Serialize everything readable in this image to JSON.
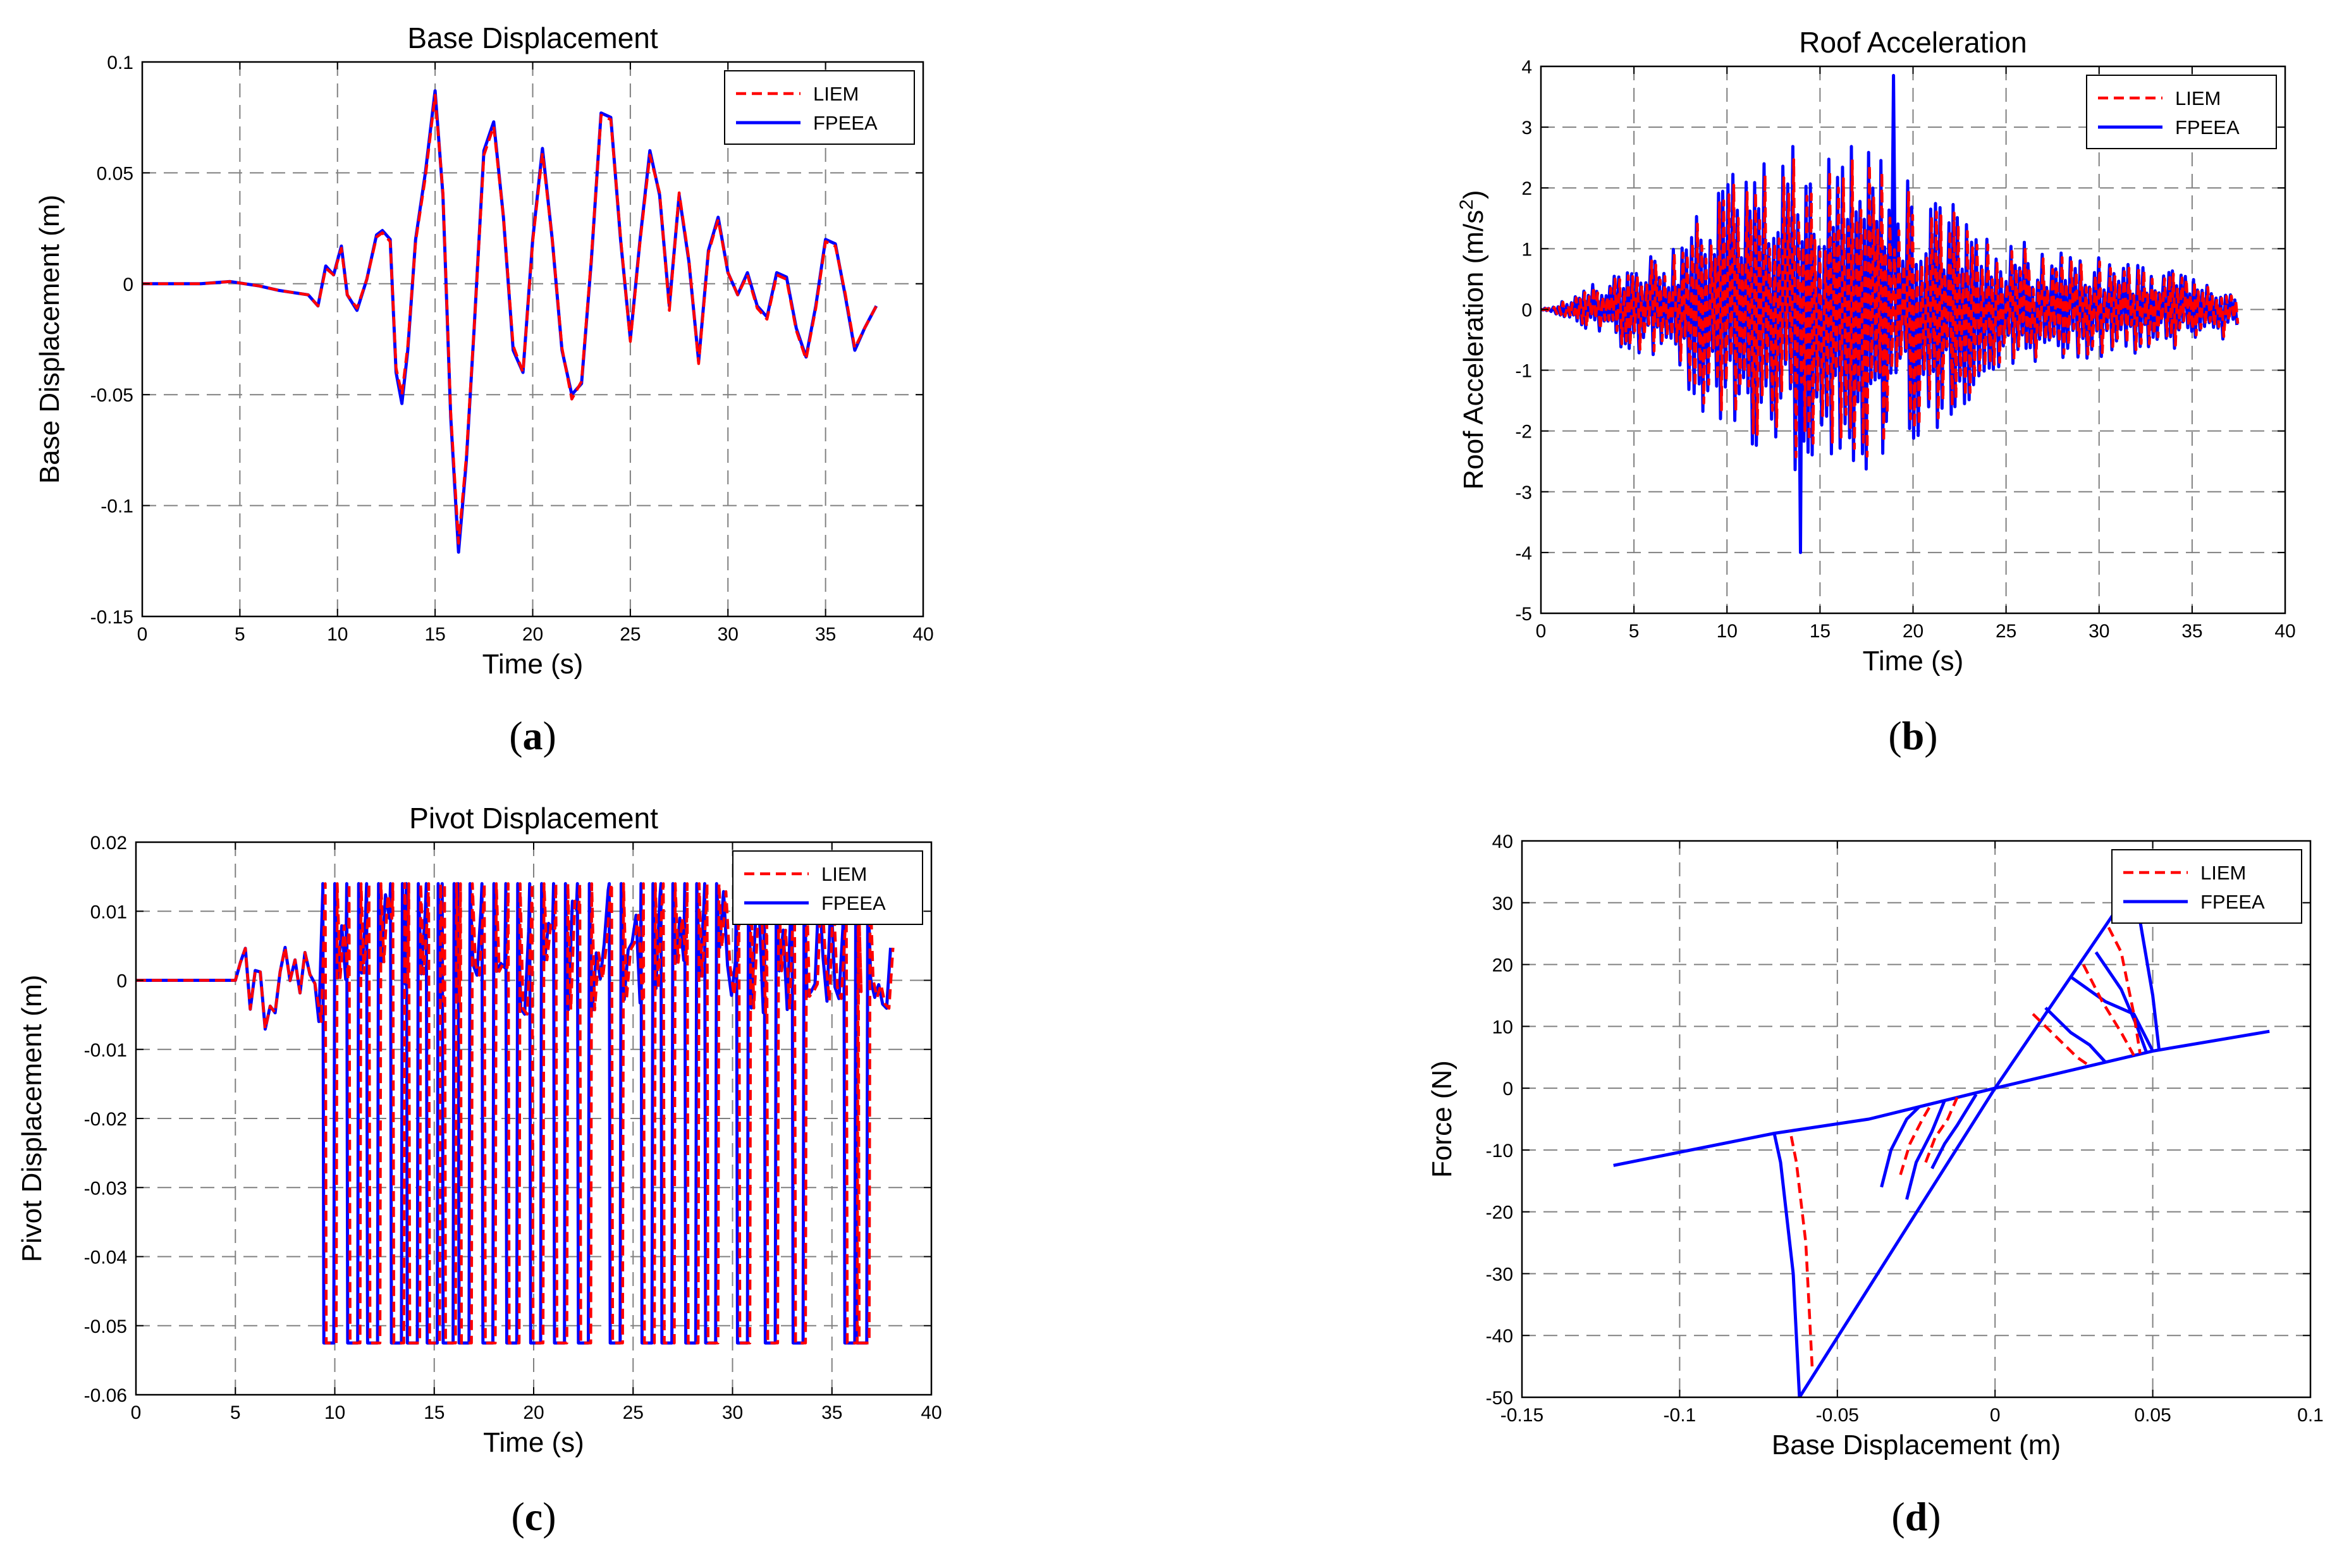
{
  "colors": {
    "liem": "#ff0000",
    "fpeea": "#0000ff",
    "grid": "#808080",
    "frame": "#000000"
  },
  "chart_data": [
    {
      "type": "line",
      "title": "Base Displacement",
      "xlabel": "Time (s)",
      "ylabel": "Base Displacement (m)",
      "xlim": [
        0,
        40
      ],
      "ylim": [
        -0.15,
        0.1
      ],
      "xticks": [
        0,
        5,
        10,
        15,
        20,
        25,
        30,
        35,
        40
      ],
      "xtick_labels": [
        "0",
        "5",
        "10",
        "15",
        "20",
        "25",
        "30",
        "35",
        "40"
      ],
      "yticks": [
        -0.15,
        -0.1,
        -0.05,
        0,
        0.05,
        0.1
      ],
      "ytick_labels": [
        "-0.15",
        "-0.1",
        "-0.05",
        "0",
        "0.05",
        "0.1"
      ],
      "legend": [
        "LIEM",
        "FPEEA"
      ],
      "legend_position": "top-right",
      "caption": "(a)",
      "caption_letter": "a",
      "series": [
        {
          "name": "FPEEA",
          "x": [
            0,
            3,
            4.5,
            6,
            7,
            8.5,
            9,
            9.4,
            9.8,
            10.2,
            10.5,
            11,
            11.5,
            12,
            12.3,
            12.7,
            13,
            13.3,
            13.6,
            14,
            14.5,
            15,
            15.4,
            15.8,
            16.2,
            16.6,
            17,
            17.5,
            18,
            18.5,
            19,
            19.5,
            20,
            20.5,
            21,
            21.5,
            22,
            22.5,
            23,
            23.5,
            24,
            24.5,
            25,
            25.5,
            26,
            26.5,
            27,
            27.5,
            28,
            28.5,
            29,
            29.5,
            30,
            30.5,
            31,
            31.5,
            32,
            32.5,
            33,
            33.5,
            34,
            34.5,
            35,
            35.5,
            36,
            36.5,
            37,
            37.6
          ],
          "y": [
            0,
            0,
            0.001,
            -0.001,
            -0.003,
            -0.005,
            -0.01,
            0.008,
            0.004,
            0.017,
            -0.005,
            -0.012,
            0.002,
            0.022,
            0.024,
            0.02,
            -0.04,
            -0.054,
            -0.03,
            0.02,
            0.05,
            0.087,
            0.04,
            -0.06,
            -0.121,
            -0.08,
            -0.02,
            0.06,
            0.073,
            0.03,
            -0.03,
            -0.04,
            0.02,
            0.061,
            0.02,
            -0.03,
            -0.05,
            -0.045,
            0.01,
            0.077,
            0.075,
            0.02,
            -0.025,
            0.02,
            0.06,
            0.04,
            -0.01,
            0.04,
            0.01,
            -0.035,
            0.015,
            0.03,
            0.005,
            -0.005,
            0.005,
            -0.01,
            -0.015,
            0.005,
            0.003,
            -0.02,
            -0.033,
            -0.01,
            0.02,
            0.018,
            -0.005,
            -0.03,
            -0.02,
            -0.01
          ]
        },
        {
          "name": "LIEM",
          "x": [
            0,
            3,
            4.5,
            6,
            7,
            8.5,
            9,
            9.4,
            9.8,
            10.2,
            10.5,
            11,
            11.5,
            12,
            12.3,
            12.7,
            13,
            13.3,
            13.6,
            14,
            14.5,
            15,
            15.4,
            15.8,
            16.2,
            16.6,
            17,
            17.5,
            18,
            18.5,
            19,
            19.5,
            20,
            20.5,
            21,
            21.5,
            22,
            22.5,
            23,
            23.5,
            24,
            24.5,
            25,
            25.5,
            26,
            26.5,
            27,
            27.5,
            28,
            28.5,
            29,
            29.5,
            30,
            30.5,
            31,
            31.5,
            32,
            32.5,
            33,
            33.5,
            34,
            34.5,
            35,
            35.5,
            36,
            36.5,
            37,
            37.6
          ],
          "y": [
            0,
            0,
            0.001,
            -0.001,
            -0.003,
            -0.005,
            -0.01,
            0.007,
            0.004,
            0.016,
            -0.005,
            -0.011,
            0.002,
            0.021,
            0.023,
            0.019,
            -0.038,
            -0.05,
            -0.028,
            0.019,
            0.048,
            0.085,
            0.041,
            -0.058,
            -0.117,
            -0.078,
            -0.02,
            0.058,
            0.071,
            0.03,
            -0.028,
            -0.04,
            0.019,
            0.059,
            0.02,
            -0.029,
            -0.052,
            -0.044,
            0.011,
            0.076,
            0.074,
            0.021,
            -0.026,
            0.019,
            0.058,
            0.041,
            -0.012,
            0.041,
            0.011,
            -0.036,
            0.014,
            0.029,
            0.005,
            -0.005,
            0.004,
            -0.011,
            -0.016,
            0.004,
            0.002,
            -0.021,
            -0.034,
            -0.011,
            0.019,
            0.017,
            -0.004,
            -0.029,
            -0.02,
            -0.01
          ]
        }
      ]
    },
    {
      "type": "line",
      "title": "Roof Acceleration",
      "xlabel": "Time (s)",
      "ylabel": "Roof Acceleration (m/s",
      "ylabel_superscript": "2",
      "ylabel_suffix": ")",
      "xlim": [
        0,
        40
      ],
      "ylim": [
        -5,
        4
      ],
      "xticks": [
        0,
        5,
        10,
        15,
        20,
        25,
        30,
        35,
        40
      ],
      "xtick_labels": [
        "0",
        "5",
        "10",
        "15",
        "20",
        "25",
        "30",
        "35",
        "40"
      ],
      "yticks": [
        -5,
        -4,
        -3,
        -2,
        -1,
        0,
        1,
        2,
        3,
        4
      ],
      "ytick_labels": [
        "-5",
        "-4",
        "-3",
        "-2",
        "-1",
        "0",
        "1",
        "2",
        "3",
        "4"
      ],
      "legend": [
        "LIEM",
        "FPEEA"
      ],
      "legend_position": "top-right",
      "caption": "(b)",
      "caption_letter": "b",
      "series": [
        {
          "name": "FPEEA",
          "time_start": 0,
          "time_end": 37.5,
          "peak_max": 3.85,
          "peak_min": -4.0
        },
        {
          "name": "LIEM",
          "time_start": 0,
          "time_end": 37.5,
          "peak_max": 3.3,
          "peak_min": -3.6
        }
      ]
    },
    {
      "type": "line",
      "title": "Pivot Displacement",
      "xlabel": "Time (s)",
      "ylabel": "Pivot Displacement (m)",
      "xlim": [
        0,
        40
      ],
      "ylim": [
        -0.06,
        0.02
      ],
      "xticks": [
        0,
        5,
        10,
        15,
        20,
        25,
        30,
        35,
        40
      ],
      "xtick_labels": [
        "0",
        "5",
        "10",
        "15",
        "20",
        "25",
        "30",
        "35",
        "40"
      ],
      "yticks": [
        -0.06,
        -0.05,
        -0.04,
        -0.03,
        -0.02,
        -0.01,
        0,
        0.01,
        0.02
      ],
      "ytick_labels": [
        "-0.06",
        "-0.05",
        "-0.04",
        "-0.03",
        "-0.02",
        "-0.01",
        "0",
        "0.01",
        "0.02"
      ],
      "legend": [
        "LIEM",
        "FPEEA"
      ],
      "legend_position": "top-right",
      "caption": "(c)",
      "caption_letter": "c",
      "series": [
        {
          "name": "FPEEA",
          "upper_limit": 0.014,
          "lower_limit": -0.0525,
          "time_start": 0,
          "time_end": 37.8
        },
        {
          "name": "LIEM",
          "upper_limit": 0.014,
          "lower_limit": -0.0525,
          "time_start": 0,
          "time_end": 37.8
        }
      ]
    },
    {
      "type": "line",
      "title": "",
      "xlabel": "Base Displacement (m)",
      "ylabel": "Force (N)",
      "xlim": [
        -0.15,
        0.1
      ],
      "ylim": [
        -50,
        40
      ],
      "xticks": [
        -0.15,
        -0.1,
        -0.05,
        0,
        0.05,
        0.1
      ],
      "xtick_labels": [
        "-0.15",
        "-0.1",
        "-0.05",
        "0",
        "0.05",
        "0.1"
      ],
      "yticks": [
        -50,
        -40,
        -30,
        -20,
        -10,
        0,
        10,
        20,
        30,
        40
      ],
      "ytick_labels": [
        "-50",
        "-40",
        "-30",
        "-20",
        "-10",
        "0",
        "10",
        "20",
        "30",
        "40"
      ],
      "legend": [
        "LIEM",
        "FPEEA"
      ],
      "legend_position": "top-right",
      "caption": "(d)",
      "caption_letter": "d",
      "series": [
        {
          "name": "FPEEA",
          "backbone": {
            "x": [
              -0.121,
              -0.07,
              -0.04,
              0,
              0.05,
              0.087
            ],
            "y": [
              -12.5,
              -7.3,
              -5,
              0,
              6,
              9.2
            ]
          },
          "elastic": {
            "x": [
              -0.062,
              0,
              0.04
            ],
            "y": [
              -50,
              0,
              30
            ]
          },
          "loops": [
            {
              "x": [
                -0.062,
                -0.064,
                -0.068,
                -0.07
              ],
              "y": [
                -50,
                -30,
                -12,
                -7.3
              ]
            },
            {
              "x": [
                0.04,
                0.046,
                0.05,
                0.052
              ],
              "y": [
                30,
                27,
                15,
                6.2
              ]
            },
            {
              "x": [
                0.032,
                0.04,
                0.045,
                0.048
              ],
              "y": [
                22,
                16,
                10,
                5.8
              ]
            },
            {
              "x": [
                0.024,
                0.035,
                0.044,
                0.05
              ],
              "y": [
                18,
                14,
                12,
                6
              ]
            },
            {
              "x": [
                0.016,
                0.024,
                0.03,
                0.035
              ],
              "y": [
                13,
                9,
                7,
                4.2
              ]
            },
            {
              "x": [
                -0.036,
                -0.033,
                -0.028,
                -0.024
              ],
              "y": [
                -16,
                -10,
                -5,
                -3
              ]
            },
            {
              "x": [
                -0.028,
                -0.025,
                -0.02,
                -0.016
              ],
              "y": [
                -18,
                -12,
                -7,
                -2
              ]
            },
            {
              "x": [
                -0.02,
                -0.016,
                -0.012,
                -0.006
              ],
              "y": [
                -13,
                -9,
                -6,
                -1
              ]
            }
          ]
        },
        {
          "name": "LIEM",
          "loops": [
            {
              "x": [
                -0.058,
                -0.06,
                -0.063,
                -0.065
              ],
              "y": [
                -45,
                -25,
                -12,
                -6.8
              ]
            },
            {
              "x": [
                0.036,
                0.04,
                0.044,
                0.046
              ],
              "y": [
                26,
                22,
                12,
                5.6
              ]
            },
            {
              "x": [
                0.028,
                0.034,
                0.04,
                0.044
              ],
              "y": [
                20,
                14,
                9,
                5.3
              ]
            },
            {
              "x": [
                0.012,
                0.02,
                0.026,
                0.03
              ],
              "y": [
                12,
                8,
                5,
                3.6
              ]
            },
            {
              "x": [
                -0.03,
                -0.027,
                -0.023,
                -0.02
              ],
              "y": [
                -14,
                -9,
                -5,
                -2.4
              ]
            },
            {
              "x": [
                -0.022,
                -0.019,
                -0.015,
                -0.012
              ],
              "y": [
                -12,
                -8,
                -5,
                -1.5
              ]
            }
          ]
        }
      ]
    }
  ]
}
